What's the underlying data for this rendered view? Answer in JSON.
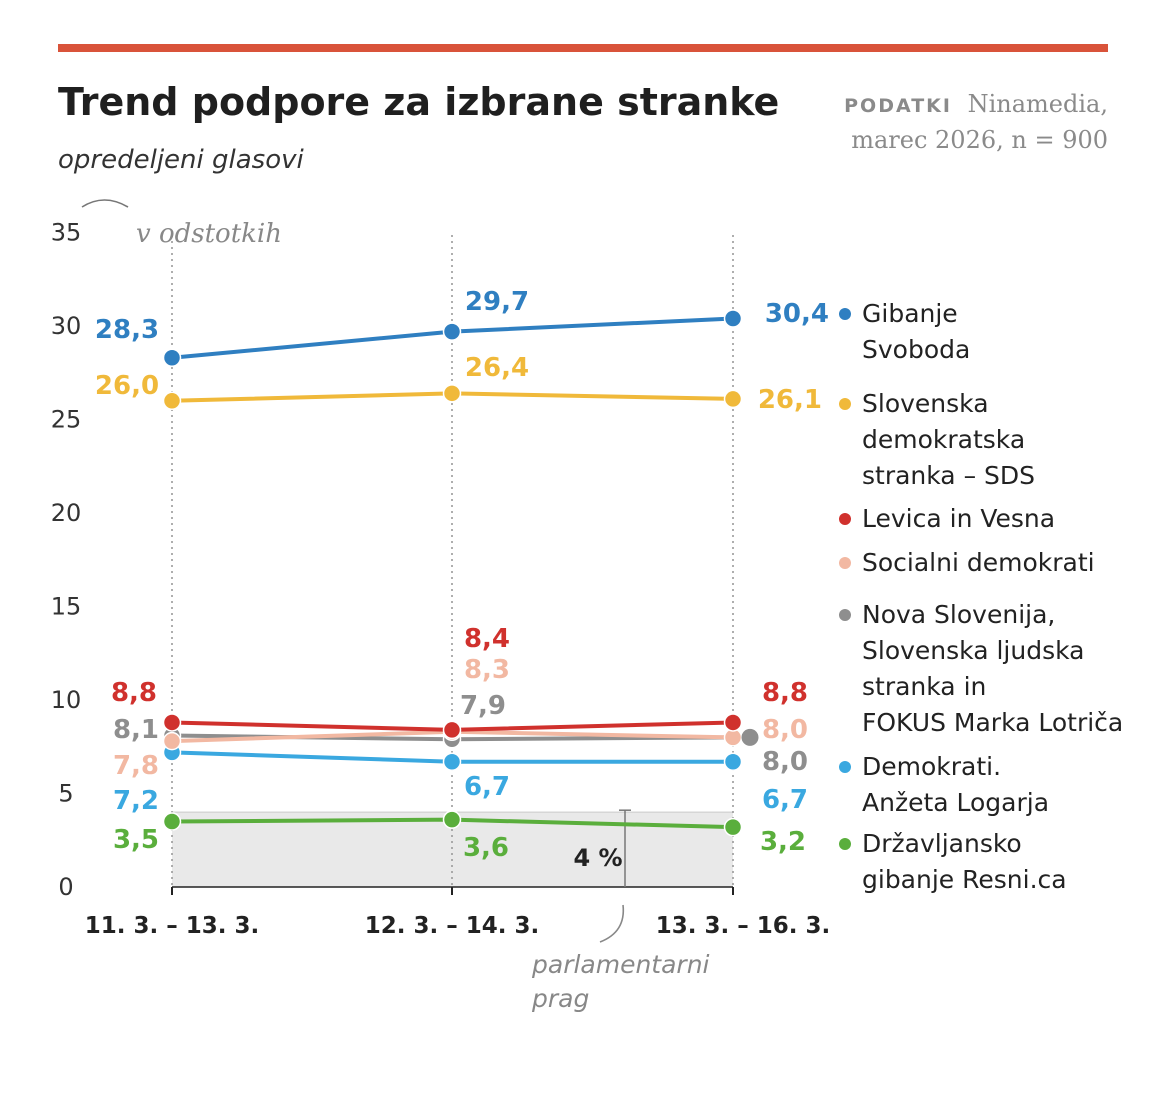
{
  "header": {
    "title": "Trend podpore za izbrane stranke",
    "subtitle": "opredeljeni glasovi",
    "source_label": "PODATKI",
    "source_name": "Ninamedia,",
    "source_detail": "marec 2026, n = 900",
    "accent_color": "#d9533a"
  },
  "chart_data": {
    "type": "line",
    "title": "Trend podpore za izbrane stranke",
    "subtitle": "opredeljeni glasovi",
    "ylabel": "v odstotkih",
    "xlabel": "",
    "categories": [
      "11. 3. – 13. 3.",
      "12. 3. – 14. 3.",
      "13. 3. – 16. 3."
    ],
    "ylim": [
      0,
      35
    ],
    "yticks": [
      0,
      5,
      10,
      15,
      20,
      25,
      30,
      35
    ],
    "threshold": {
      "value": 4,
      "label": "4 %",
      "note_line1": "parlamentarni",
      "note_line2": "prag"
    },
    "series": [
      {
        "key": "gs",
        "name_lines": [
          "Gibanje",
          "Svoboda"
        ],
        "color": "#2f7fc1",
        "values": [
          28.3,
          29.7,
          30.4
        ],
        "labels": [
          "28,3",
          "29,7",
          "30,4"
        ]
      },
      {
        "key": "sds",
        "name_lines": [
          "Slovenska",
          "demokratska",
          "stranka – SDS"
        ],
        "color": "#f0b93a",
        "values": [
          26.0,
          26.4,
          26.1
        ],
        "labels": [
          "26,0",
          "26,4",
          "26,1"
        ]
      },
      {
        "key": "levica",
        "name_lines": [
          "Levica in Vesna"
        ],
        "color": "#d0312d",
        "values": [
          8.8,
          8.4,
          8.8
        ],
        "labels": [
          "8,8",
          "8,4",
          "8,8"
        ]
      },
      {
        "key": "sd",
        "name_lines": [
          "Socialni demokrati"
        ],
        "color": "#f2b8a2",
        "values": [
          7.8,
          8.3,
          8.0
        ],
        "labels": [
          "7,8",
          "8,3",
          "8,0"
        ]
      },
      {
        "key": "nsi",
        "name_lines": [
          "Nova Slovenija,",
          "Slovenska ljudska",
          "stranka in",
          "FOKUS Marka Lotriča"
        ],
        "color": "#8e8e8e",
        "values": [
          8.1,
          7.9,
          8.0
        ],
        "labels": [
          "8,1",
          "7,9",
          "8,0"
        ]
      },
      {
        "key": "dem",
        "name_lines": [
          "Demokrati.",
          "Anžeta Logarja"
        ],
        "color": "#3aa8e0",
        "values": [
          7.2,
          6.7,
          6.7
        ],
        "labels": [
          "7,2",
          "6,7",
          "6,7"
        ]
      },
      {
        "key": "resni",
        "name_lines": [
          "Državljansko",
          "gibanje Resni.ca"
        ],
        "color": "#5aae3c",
        "values": [
          3.5,
          3.6,
          3.2
        ],
        "labels": [
          "3,5",
          "3,6",
          "3,2"
        ]
      }
    ]
  }
}
